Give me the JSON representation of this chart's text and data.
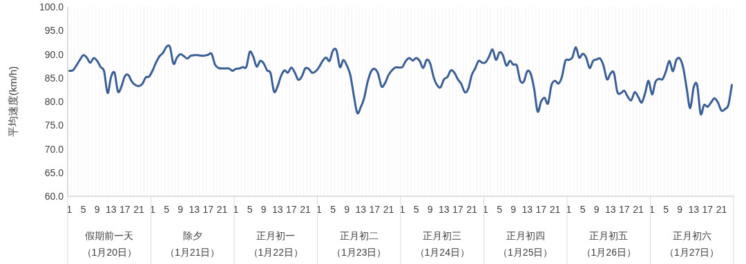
{
  "chart_data": {
    "type": "line",
    "ylabel": "平均速度(km/h)",
    "categories": [
      "1",
      null,
      null,
      null,
      "5",
      null,
      null,
      null,
      "9",
      null,
      null,
      null,
      "13",
      null,
      null,
      null,
      "17",
      null,
      null,
      null,
      "21",
      null,
      null,
      null,
      "1",
      null,
      null,
      null,
      "5",
      null,
      null,
      null,
      "9",
      null,
      null,
      null,
      "13",
      null,
      null,
      null,
      "17",
      null,
      null,
      null,
      "21",
      null,
      null,
      null,
      "1",
      null,
      null,
      null,
      "5",
      null,
      null,
      null,
      "9",
      null,
      null,
      null,
      "13",
      null,
      null,
      null,
      "17",
      null,
      null,
      null,
      "21",
      null,
      null,
      null,
      "1",
      null,
      null,
      null,
      "5",
      null,
      null,
      null,
      "9",
      null,
      null,
      null,
      "13",
      null,
      null,
      null,
      "17",
      null,
      null,
      null,
      "21",
      null,
      null,
      null,
      "1",
      null,
      null,
      null,
      "5",
      null,
      null,
      null,
      "9",
      null,
      null,
      null,
      "13",
      null,
      null,
      null,
      "17",
      null,
      null,
      null,
      "21",
      null,
      null,
      null,
      "1",
      null,
      null,
      null,
      "5",
      null,
      null,
      null,
      "9",
      null,
      null,
      null,
      "13",
      null,
      null,
      null,
      "17",
      null,
      null,
      null,
      "21",
      null,
      null,
      null,
      "1",
      null,
      null,
      null,
      "5",
      null,
      null,
      null,
      "9",
      null,
      null,
      null,
      "13",
      null,
      null,
      null,
      "17",
      null,
      null,
      null,
      "21",
      null,
      null,
      null,
      "1",
      null,
      null,
      null,
      "5",
      null,
      null,
      null,
      "9",
      null,
      null,
      null,
      "13",
      null,
      null,
      null,
      "17",
      null,
      null,
      null,
      "21",
      null,
      null,
      null
    ],
    "annotations": [
      "假期前一天",
      "（1月20日）",
      "除夕",
      "（1月21日）",
      "正月初一",
      "（1月22日）",
      "正月初二",
      "（1月23日）",
      "正月初三",
      "（1月24日）",
      "正月初四",
      "（1月25日）",
      "正月初五",
      "（1月26日）",
      "正月初六",
      "（1月27日）"
    ],
    "series": [
      {
        "color": "#3a5f96",
        "values": [
          86.5,
          86.6,
          87.6,
          88.8,
          89.8,
          89.3,
          88.2,
          89.2,
          88.6,
          87.3,
          86.4,
          81.8,
          85.2,
          86.1,
          82.1,
          83.2,
          85.4,
          85.6,
          84.2,
          83.5,
          83.3,
          83.7,
          85.1,
          85.3,
          86.6,
          88.3,
          89.6,
          90.3,
          91.6,
          91.5,
          88.0,
          89.3,
          90.0,
          89.6,
          89.1,
          89.7,
          89.8,
          89.8,
          89.7,
          89.7,
          89.9,
          90.1,
          87.8,
          87.1,
          87.0,
          87.0,
          87.0,
          86.5,
          86.9,
          87.0,
          87.3,
          87.3,
          90.5,
          89.5,
          87.4,
          88.6,
          88.1,
          86.6,
          86.0,
          82.1,
          83.2,
          85.4,
          86.6,
          86.1,
          87.2,
          86.1,
          84.6,
          85.3,
          87.0,
          86.9,
          86.1,
          86.4,
          87.3,
          88.6,
          89.3,
          88.6,
          90.8,
          90.8,
          87.3,
          88.8,
          87.6,
          85.6,
          81.3,
          77.6,
          78.8,
          80.8,
          84.2,
          86.4,
          86.9,
          85.9,
          83.2,
          83.9,
          85.6,
          86.6,
          87.2,
          87.2,
          87.3,
          88.6,
          89.2,
          88.7,
          89.2,
          88.6,
          87.1,
          88.8,
          88.1,
          85.2,
          83.5,
          83.0,
          84.7,
          85.2,
          86.6,
          86.1,
          84.7,
          83.7,
          82.0,
          82.7,
          85.6,
          87.0,
          88.6,
          88.2,
          88.3,
          89.5,
          91.0,
          88.8,
          90.4,
          89.8,
          87.6,
          88.6,
          87.8,
          87.6,
          84.4,
          84.2,
          86.4,
          85.9,
          82.7,
          77.9,
          80.0,
          80.8,
          79.6,
          83.5,
          84.4,
          83.8,
          85.2,
          88.6,
          88.8,
          89.3,
          91.5,
          89.3,
          90.1,
          89.3,
          87.1,
          88.6,
          88.9,
          89.1,
          87.6,
          84.7,
          85.9,
          86.1,
          82.0,
          81.8,
          82.3,
          81.0,
          80.3,
          82.0,
          81.0,
          79.8,
          81.8,
          84.4,
          81.5,
          84.2,
          84.8,
          84.7,
          86.4,
          88.6,
          86.4,
          88.8,
          89.1,
          87.1,
          82.7,
          78.6,
          83.0,
          83.5,
          77.4,
          79.3,
          78.9,
          79.8,
          80.7,
          79.8,
          78.1,
          78.4,
          79.3,
          83.5
        ]
      }
    ],
    "ylim": [
      60,
      100
    ],
    "yticks": [
      {
        "value": 60,
        "label": "60.0"
      },
      {
        "value": 65,
        "label": "65.0"
      },
      {
        "value": 70,
        "label": "70.0"
      },
      {
        "value": 75,
        "label": "75.0"
      },
      {
        "value": 80,
        "label": "80.0"
      },
      {
        "value": 85,
        "label": "85.0"
      },
      {
        "value": 90,
        "label": "90.0"
      },
      {
        "value": 95,
        "label": "95.0"
      },
      {
        "value": 100,
        "label": "100.0"
      }
    ],
    "grid": "x",
    "marker": "none",
    "line_style": "solid"
  }
}
